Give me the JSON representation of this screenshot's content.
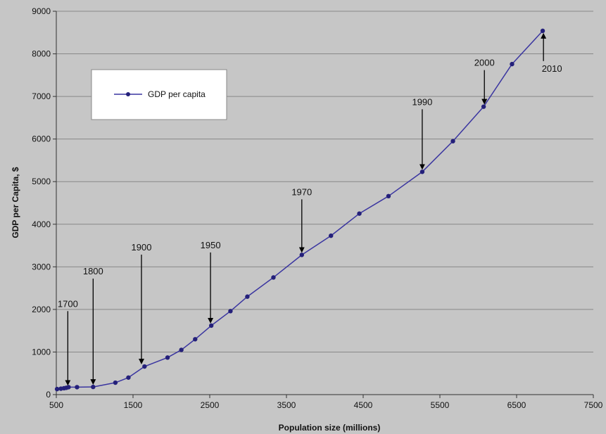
{
  "chart_data": {
    "type": "line",
    "xlabel": "Population size (millions)",
    "ylabel": "GDP per Capita, $",
    "xlim": [
      500,
      7500
    ],
    "ylim": [
      0,
      9000
    ],
    "x_ticks": [
      500,
      1500,
      2500,
      3500,
      4500,
      5500,
      6500,
      7500
    ],
    "y_ticks": [
      0,
      1000,
      2000,
      3000,
      4000,
      5000,
      6000,
      7000,
      8000,
      9000
    ],
    "grid": "horizontal",
    "legend_position": "top-left",
    "colors": {
      "line": "#3a35a0",
      "marker": "#24207a",
      "plot_bg": "#c6c6c6",
      "grid": "#888888",
      "legend_bg": "#ffffff"
    },
    "series": [
      {
        "name": "GDP per capita",
        "x": [
          510,
          560,
          600,
          630,
          660,
          770,
          980,
          1270,
          1440,
          1650,
          1950,
          2130,
          2310,
          2520,
          2770,
          2990,
          3330,
          3700,
          4080,
          4450,
          4830,
          5270,
          5670,
          6070,
          6440,
          6840
        ],
        "y": [
          130,
          140,
          150,
          160,
          175,
          175,
          180,
          280,
          400,
          660,
          870,
          1050,
          1300,
          1620,
          1960,
          2300,
          2750,
          3280,
          3730,
          4250,
          4660,
          5230,
          5950,
          6760,
          7760,
          8540
        ]
      }
    ],
    "annotations": [
      {
        "label": "1700",
        "x": 650,
        "y": 160
      },
      {
        "label": "1800",
        "x": 980,
        "y": 180
      },
      {
        "label": "1900",
        "x": 1610,
        "y": 660
      },
      {
        "label": "1950",
        "x": 2510,
        "y": 1620
      },
      {
        "label": "1970",
        "x": 3700,
        "y": 3280
      },
      {
        "label": "1990",
        "x": 5270,
        "y": 5230
      },
      {
        "label": "2000",
        "x": 6080,
        "y": 6760
      },
      {
        "label": "2010",
        "x": 6850,
        "y": 8540
      }
    ]
  }
}
